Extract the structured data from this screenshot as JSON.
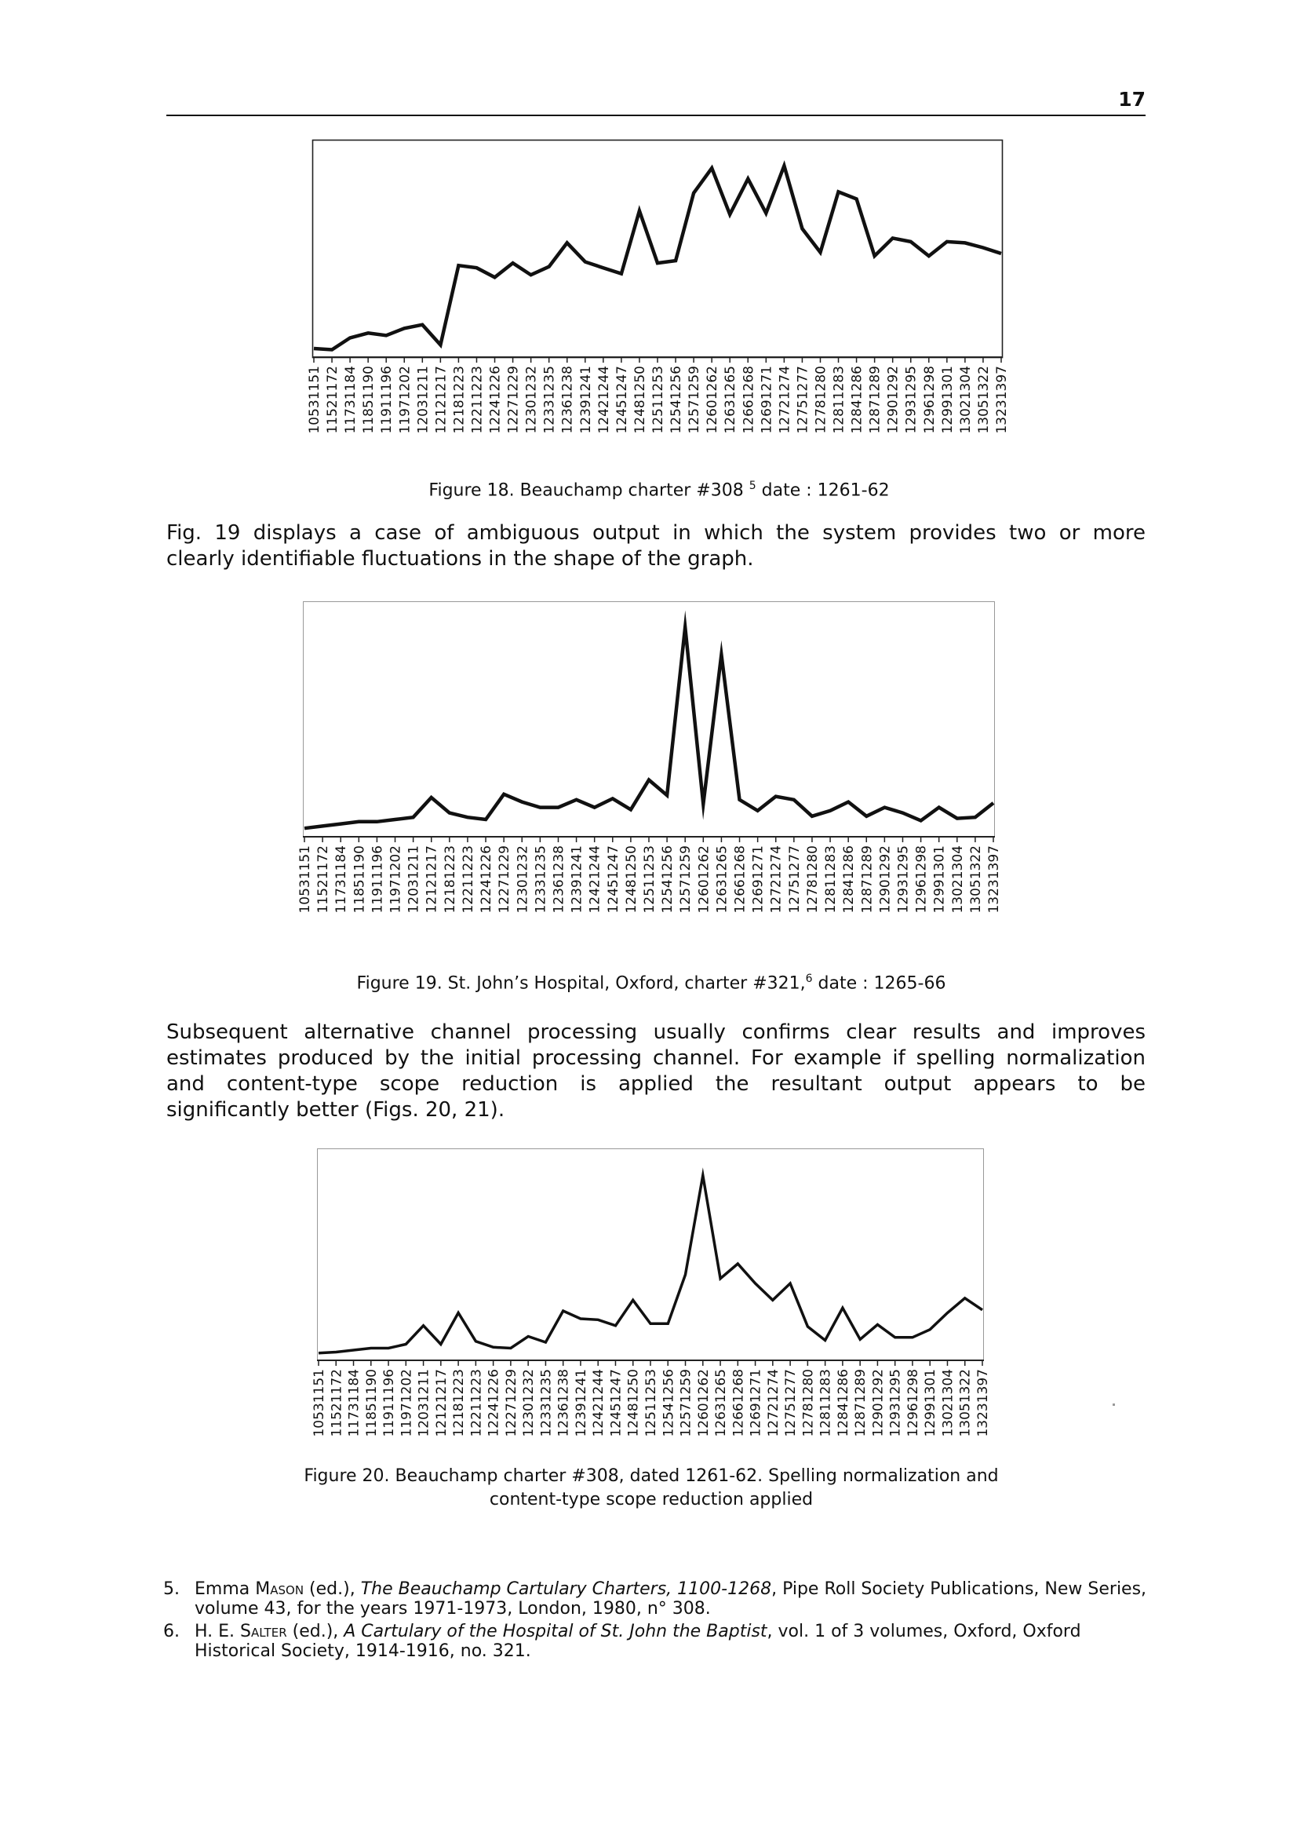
{
  "page_number": "17",
  "chart_data": [
    {
      "type": "line",
      "categories": [
        "10531151",
        "11521172",
        "11731184",
        "11851190",
        "11911196",
        "11971202",
        "12031211",
        "12121217",
        "12181223",
        "12211223",
        "12241226",
        "12271229",
        "12301232",
        "12331235",
        "12361238",
        "12391241",
        "12421244",
        "12451247",
        "12481250",
        "12511253",
        "12541256",
        "12571259",
        "12601262",
        "12631265",
        "12661268",
        "12691271",
        "12721274",
        "12751277",
        "12781280",
        "12811283",
        "12841286",
        "12871289",
        "12901292",
        "12931295",
        "12961298",
        "12991301",
        "13021304",
        "13051322",
        "13231397"
      ],
      "values": [
        2,
        1,
        11,
        15,
        13,
        19,
        22,
        5,
        72,
        70,
        62,
        74,
        64,
        71,
        91,
        75,
        70,
        65,
        118,
        74,
        76,
        133,
        154,
        115,
        145,
        116,
        156,
        103,
        83,
        134,
        128,
        80,
        95,
        92,
        80,
        92,
        91,
        87,
        82
      ],
      "ylim": [
        0,
        170
      ],
      "title": "",
      "xlabel": "",
      "ylabel": ""
    },
    {
      "type": "line",
      "categories": [
        "10531151",
        "11521172",
        "11731184",
        "11851190",
        "11911196",
        "11971202",
        "12031211",
        "12121217",
        "12181223",
        "12211223",
        "12241226",
        "12271229",
        "12301232",
        "12331235",
        "12361238",
        "12391241",
        "12421244",
        "12451247",
        "12481250",
        "12511253",
        "12541256",
        "12571259",
        "12601262",
        "12631265",
        "12661268",
        "12691271",
        "12721274",
        "12751277",
        "12781280",
        "12811283",
        "12841286",
        "12871289",
        "12901292",
        "12931295",
        "12961298",
        "12991301",
        "13021304",
        "13051322",
        "13231397"
      ],
      "values": [
        2,
        4,
        6,
        8,
        8,
        10,
        12,
        30,
        16,
        12,
        10,
        33,
        26,
        21,
        21,
        28,
        21,
        29,
        19,
        46,
        32,
        185,
        24,
        160,
        28,
        18,
        31,
        28,
        13,
        18,
        26,
        13,
        21,
        16,
        9,
        21,
        11,
        12,
        25
      ],
      "ylim": [
        0,
        200
      ],
      "title": "",
      "xlabel": "",
      "ylabel": ""
    },
    {
      "type": "line",
      "categories": [
        "10531151",
        "11521172",
        "11731184",
        "11851190",
        "11911196",
        "11971202",
        "12031211",
        "12121217",
        "12181223",
        "12211223",
        "12241226",
        "12271229",
        "12301232",
        "12331235",
        "12361238",
        "12391241",
        "12421244",
        "12451247",
        "12481250",
        "12511253",
        "12541256",
        "12571259",
        "12601262",
        "12631265",
        "12661268",
        "12691271",
        "12721274",
        "12751277",
        "12781280",
        "12811283",
        "12841286",
        "12871289",
        "12901292",
        "12931295",
        "12961298",
        "12991301",
        "13021304",
        "13051322",
        "13231397"
      ],
      "values": [
        1,
        2,
        4,
        6,
        6,
        10,
        29,
        10,
        42,
        13,
        7,
        6,
        18,
        12,
        44,
        36,
        35,
        29,
        55,
        31,
        31,
        81,
        182,
        77,
        92,
        72,
        55,
        72,
        28,
        14,
        47,
        15,
        30,
        17,
        17,
        25,
        42,
        57,
        45
      ],
      "ylim": [
        0,
        200
      ],
      "title": "",
      "xlabel": "",
      "ylabel": ""
    }
  ],
  "captions": {
    "fig18_prefix": "Figure 18. Beauchamp charter #308",
    "fig18_ref": "5",
    "fig18_suffix": " date : 1261-62",
    "fig19_prefix": "Figure 19. St. John’s Hospital, Oxford, charter #321,",
    "fig19_ref": "6",
    "fig19_suffix": " date : 1265-66",
    "fig20_line1": "Figure 20. Beauchamp charter #308, dated 1261-62. Spelling normalization and",
    "fig20_line2": "content-type scope reduction applied"
  },
  "paragraph1": {
    "line1": "Fig. 19 displays a case of ambiguous output in which the system provides two or more",
    "line2": "clearly identifiable fluctuations in the shape of the graph."
  },
  "paragraph2": {
    "line1": "Subsequent alternative channel processing usually confirms clear results and improves",
    "line2": "estimates produced by the initial processing channel. For example if spelling normalization",
    "line3": "and content-type scope reduction is applied the resultant output appears to be",
    "line4": "significantly better (Figs. 20, 21)."
  },
  "footnotes": [
    {
      "num": "5.",
      "author_first": "Emma ",
      "author_last": "Mason",
      "after_author": " (ed.), ",
      "title": "The Beauchamp Cartulary Charters, 1100-1268",
      "rest": ", Pipe Roll Society Publications, New Series, volume 43, for the years 1971-1973, London, 1980, n° 308."
    },
    {
      "num": "6.",
      "author_first": "H. E. ",
      "author_last": "Salter",
      "after_author": " (ed.), ",
      "title": "A Cartulary of the Hospital of St. John the Baptist",
      "rest": ", vol. 1 of 3 volumes, Oxford, Oxford Historical Society, 1914-1916, no. 321."
    }
  ]
}
